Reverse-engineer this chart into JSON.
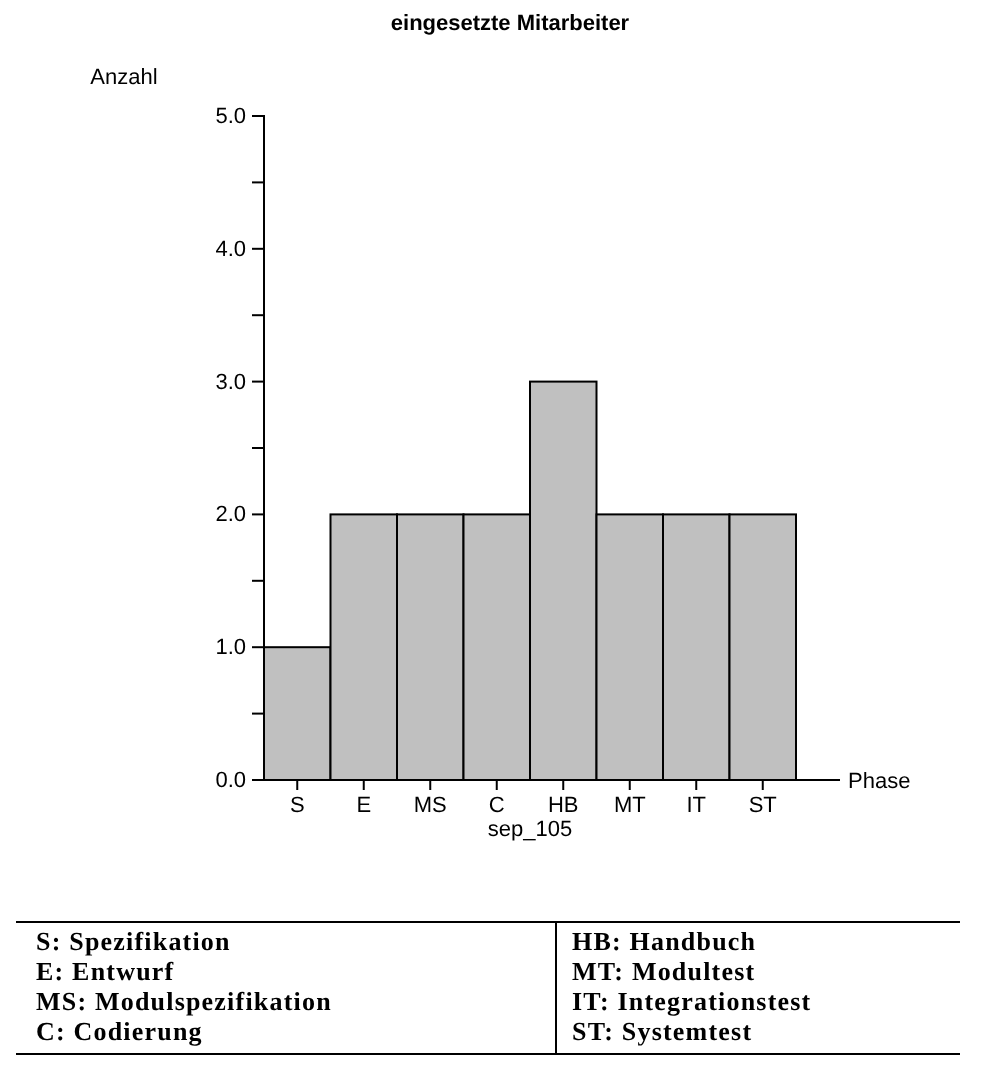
{
  "chart_data": {
    "type": "bar",
    "title": "eingesetzte Mitarbeiter",
    "xlabel": "Phase",
    "subtitle": "sep_105",
    "ylabel": "Anzahl",
    "categories": [
      "S",
      "E",
      "MS",
      "C",
      "HB",
      "MT",
      "IT",
      "ST"
    ],
    "values": [
      1,
      2,
      2,
      2,
      3,
      2,
      2,
      2
    ],
    "color": "#c0c0c0",
    "ylim": [
      0,
      5
    ],
    "yticks": [
      {
        "value": 0,
        "label": "0.0"
      },
      {
        "value": 0.5,
        "label": null
      },
      {
        "value": 1,
        "label": "1.0"
      },
      {
        "value": 1.5,
        "label": null
      },
      {
        "value": 2,
        "label": "2.0"
      },
      {
        "value": 2.5,
        "label": null
      },
      {
        "value": 3,
        "label": "3.0"
      },
      {
        "value": 3.5,
        "label": null
      },
      {
        "value": 4,
        "label": "4.0"
      },
      {
        "value": 4.5,
        "label": null
      },
      {
        "value": 5,
        "label": "5.0"
      }
    ],
    "grid": false,
    "annotations": [
      "S: Spezifikation",
      "E: Entwurf",
      "MS: Modulspezifikation",
      "C: Codierung",
      "HB: Handbuch",
      "MT: Modultest",
      "IT: Integrationstest",
      "ST: Systemtest"
    ]
  }
}
